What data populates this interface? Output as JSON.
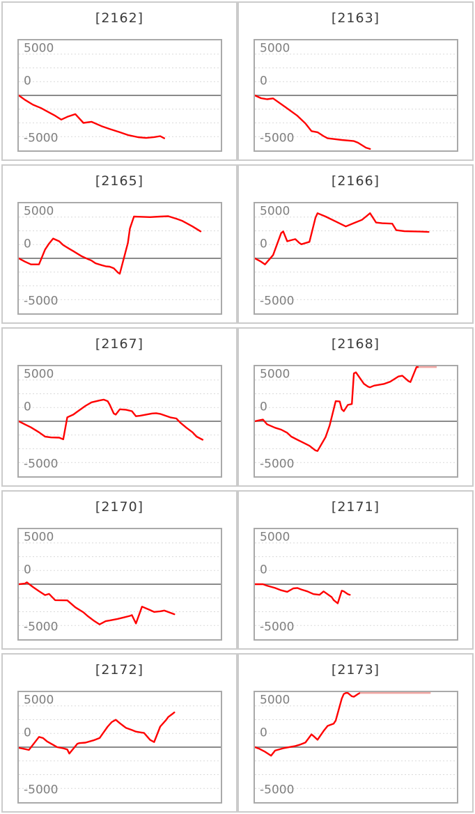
{
  "page": {
    "background": "#ffffff",
    "layout": "5 rows x 2 columns of machine net-win line charts"
  },
  "axis": {
    "labels": {
      "max": "5000",
      "zero": "0",
      "min": "-5000"
    },
    "ymax": 5000,
    "ymin": -5000,
    "grid_step": 1250,
    "grid": "dashed horizontal lines, solid line at 0"
  },
  "colors": {
    "line": "#ff0000",
    "clip_line": "#f2a6a3",
    "grid": "#d9d9d9",
    "zero_line": "#8a8a8a",
    "plot_border": "#a9a9a9",
    "cell_border": "#cbcbcb",
    "title": "#3a3a3a",
    "axis_label": "#7f7f7f"
  },
  "chart_data": [
    {
      "type": "line",
      "title": "[2162]",
      "ylim": [
        -5000,
        5000
      ],
      "x_unit": "fraction of plot width",
      "points": [
        [
          0,
          0
        ],
        [
          0.03,
          -400
        ],
        [
          0.07,
          -850
        ],
        [
          0.11,
          -1150
        ],
        [
          0.14,
          -1450
        ],
        [
          0.18,
          -1850
        ],
        [
          0.21,
          -2200
        ],
        [
          0.24,
          -1950
        ],
        [
          0.28,
          -1700
        ],
        [
          0.32,
          -2500
        ],
        [
          0.36,
          -2400
        ],
        [
          0.41,
          -2800
        ],
        [
          0.45,
          -3050
        ],
        [
          0.5,
          -3350
        ],
        [
          0.54,
          -3600
        ],
        [
          0.59,
          -3800
        ],
        [
          0.63,
          -3870
        ],
        [
          0.67,
          -3790
        ],
        [
          0.7,
          -3700
        ],
        [
          0.72,
          -3900
        ]
      ],
      "clip_segment": null
    },
    {
      "type": "line",
      "title": "[2163]",
      "ylim": [
        -5000,
        5000
      ],
      "x_unit": "fraction of plot width",
      "points": [
        [
          0,
          0
        ],
        [
          0.03,
          -250
        ],
        [
          0.06,
          -350
        ],
        [
          0.09,
          -270
        ],
        [
          0.15,
          -1050
        ],
        [
          0.21,
          -1850
        ],
        [
          0.25,
          -2550
        ],
        [
          0.28,
          -3250
        ],
        [
          0.31,
          -3350
        ],
        [
          0.34,
          -3700
        ],
        [
          0.36,
          -3900
        ],
        [
          0.43,
          -4050
        ],
        [
          0.49,
          -4150
        ],
        [
          0.51,
          -4300
        ],
        [
          0.55,
          -4750
        ],
        [
          0.57,
          -4870
        ]
      ],
      "clip_segment": null
    },
    {
      "type": "line",
      "title": "[2165]",
      "ylim": [
        -5000,
        5000
      ],
      "x_unit": "fraction of plot width",
      "points": [
        [
          0,
          0
        ],
        [
          0.03,
          -300
        ],
        [
          0.06,
          -550
        ],
        [
          0.1,
          -550
        ],
        [
          0.13,
          800
        ],
        [
          0.15,
          1350
        ],
        [
          0.17,
          1800
        ],
        [
          0.2,
          1550
        ],
        [
          0.22,
          1200
        ],
        [
          0.25,
          870
        ],
        [
          0.27,
          650
        ],
        [
          0.31,
          200
        ],
        [
          0.34,
          -50
        ],
        [
          0.36,
          -200
        ],
        [
          0.38,
          -450
        ],
        [
          0.41,
          -620
        ],
        [
          0.43,
          -720
        ],
        [
          0.45,
          -760
        ],
        [
          0.47,
          -900
        ],
        [
          0.49,
          -1280
        ],
        [
          0.5,
          -1400
        ],
        [
          0.54,
          1400
        ],
        [
          0.55,
          2700
        ],
        [
          0.57,
          3800
        ],
        [
          0.6,
          3780
        ],
        [
          0.65,
          3750
        ],
        [
          0.7,
          3800
        ],
        [
          0.74,
          3830
        ],
        [
          0.78,
          3600
        ],
        [
          0.81,
          3400
        ],
        [
          0.83,
          3200
        ],
        [
          0.86,
          2900
        ],
        [
          0.9,
          2450
        ]
      ],
      "clip_segment": null
    },
    {
      "type": "line",
      "title": "[2166]",
      "ylim": [
        -5000,
        5000
      ],
      "x_unit": "fraction of plot width",
      "points": [
        [
          0,
          0
        ],
        [
          0.03,
          -300
        ],
        [
          0.05,
          -550
        ],
        [
          0.09,
          300
        ],
        [
          0.13,
          2300
        ],
        [
          0.14,
          2450
        ],
        [
          0.16,
          1550
        ],
        [
          0.18,
          1650
        ],
        [
          0.2,
          1750
        ],
        [
          0.22,
          1400
        ],
        [
          0.23,
          1280
        ],
        [
          0.27,
          1500
        ],
        [
          0.3,
          3700
        ],
        [
          0.31,
          4100
        ],
        [
          0.35,
          3800
        ],
        [
          0.4,
          3350
        ],
        [
          0.45,
          2900
        ],
        [
          0.49,
          3200
        ],
        [
          0.53,
          3500
        ],
        [
          0.55,
          3800
        ],
        [
          0.57,
          4100
        ],
        [
          0.6,
          3250
        ],
        [
          0.63,
          3190
        ],
        [
          0.68,
          3150
        ],
        [
          0.7,
          2560
        ],
        [
          0.74,
          2470
        ],
        [
          0.82,
          2430
        ],
        [
          0.86,
          2400
        ]
      ],
      "clip_segment": null
    },
    {
      "type": "line",
      "title": "[2167]",
      "ylim": [
        -5000,
        5000
      ],
      "x_unit": "fraction of plot width",
      "points": [
        [
          0,
          0
        ],
        [
          0.03,
          -280
        ],
        [
          0.06,
          -550
        ],
        [
          0.1,
          -1000
        ],
        [
          0.13,
          -1390
        ],
        [
          0.16,
          -1470
        ],
        [
          0.2,
          -1490
        ],
        [
          0.22,
          -1640
        ],
        [
          0.24,
          360
        ],
        [
          0.27,
          610
        ],
        [
          0.29,
          880
        ],
        [
          0.33,
          1400
        ],
        [
          0.36,
          1720
        ],
        [
          0.4,
          1890
        ],
        [
          0.42,
          1970
        ],
        [
          0.44,
          1830
        ],
        [
          0.45,
          1510
        ],
        [
          0.47,
          710
        ],
        [
          0.48,
          610
        ],
        [
          0.5,
          1090
        ],
        [
          0.53,
          1050
        ],
        [
          0.56,
          920
        ],
        [
          0.58,
          460
        ],
        [
          0.6,
          500
        ],
        [
          0.63,
          610
        ],
        [
          0.66,
          710
        ],
        [
          0.68,
          735
        ],
        [
          0.7,
          670
        ],
        [
          0.75,
          355
        ],
        [
          0.78,
          250
        ],
        [
          0.8,
          -130
        ],
        [
          0.83,
          -590
        ],
        [
          0.86,
          -1000
        ],
        [
          0.88,
          -1390
        ],
        [
          0.91,
          -1680
        ]
      ],
      "clip_segment": null
    },
    {
      "type": "line",
      "title": "[2168]",
      "ylim": [
        -5000,
        5000
      ],
      "x_unit": "fraction of plot width",
      "points": [
        [
          0,
          0
        ],
        [
          0.02,
          80
        ],
        [
          0.04,
          150
        ],
        [
          0.06,
          -270
        ],
        [
          0.1,
          -590
        ],
        [
          0.13,
          -760
        ],
        [
          0.16,
          -1050
        ],
        [
          0.18,
          -1390
        ],
        [
          0.21,
          -1680
        ],
        [
          0.24,
          -1950
        ],
        [
          0.27,
          -2230
        ],
        [
          0.3,
          -2650
        ],
        [
          0.31,
          -2700
        ],
        [
          0.35,
          -1430
        ],
        [
          0.37,
          -380
        ],
        [
          0.4,
          1830
        ],
        [
          0.42,
          1800
        ],
        [
          0.43,
          1090
        ],
        [
          0.44,
          920
        ],
        [
          0.46,
          1490
        ],
        [
          0.48,
          1570
        ],
        [
          0.49,
          4350
        ],
        [
          0.5,
          4450
        ],
        [
          0.54,
          3400
        ],
        [
          0.56,
          3150
        ],
        [
          0.57,
          3090
        ],
        [
          0.59,
          3240
        ],
        [
          0.64,
          3400
        ],
        [
          0.67,
          3600
        ],
        [
          0.71,
          4070
        ],
        [
          0.73,
          4140
        ],
        [
          0.76,
          3650
        ],
        [
          0.77,
          3570
        ],
        [
          0.8,
          4980
        ],
        [
          0.81,
          5000
        ]
      ],
      "clip_segment": {
        "x1": 0.81,
        "x2": 0.9,
        "value": 5000
      }
    },
    {
      "type": "line",
      "title": "[2170]",
      "ylim": [
        -5000,
        5000
      ],
      "x_unit": "fraction of plot width",
      "points": [
        [
          0,
          0
        ],
        [
          0.03,
          60
        ],
        [
          0.04,
          170
        ],
        [
          0.07,
          -250
        ],
        [
          0.1,
          -630
        ],
        [
          0.13,
          -990
        ],
        [
          0.15,
          -880
        ],
        [
          0.18,
          -1450
        ],
        [
          0.24,
          -1470
        ],
        [
          0.28,
          -2100
        ],
        [
          0.32,
          -2560
        ],
        [
          0.34,
          -2880
        ],
        [
          0.37,
          -3300
        ],
        [
          0.4,
          -3650
        ],
        [
          0.43,
          -3360
        ],
        [
          0.45,
          -3300
        ],
        [
          0.49,
          -3150
        ],
        [
          0.52,
          -3020
        ],
        [
          0.55,
          -2880
        ],
        [
          0.56,
          -2810
        ],
        [
          0.58,
          -3570
        ],
        [
          0.61,
          -2040
        ],
        [
          0.65,
          -2350
        ],
        [
          0.67,
          -2520
        ],
        [
          0.7,
          -2460
        ],
        [
          0.72,
          -2390
        ],
        [
          0.77,
          -2730
        ]
      ],
      "clip_segment": null
    },
    {
      "type": "line",
      "title": "[2171]",
      "ylim": [
        -5000,
        5000
      ],
      "x_unit": "fraction of plot width",
      "points": [
        [
          0,
          0
        ],
        [
          0.04,
          0
        ],
        [
          0.06,
          -130
        ],
        [
          0.1,
          -340
        ],
        [
          0.13,
          -550
        ],
        [
          0.16,
          -690
        ],
        [
          0.19,
          -380
        ],
        [
          0.21,
          -340
        ],
        [
          0.23,
          -480
        ],
        [
          0.26,
          -650
        ],
        [
          0.29,
          -900
        ],
        [
          0.32,
          -960
        ],
        [
          0.34,
          -650
        ],
        [
          0.38,
          -1170
        ],
        [
          0.39,
          -1440
        ],
        [
          0.41,
          -1740
        ],
        [
          0.43,
          -590
        ],
        [
          0.44,
          -650
        ],
        [
          0.46,
          -900
        ],
        [
          0.47,
          -960
        ]
      ],
      "clip_segment": null
    },
    {
      "type": "line",
      "title": "[2172]",
      "ylim": [
        -5000,
        5000
      ],
      "x_unit": "fraction of plot width",
      "points": [
        [
          0,
          -60
        ],
        [
          0.03,
          -170
        ],
        [
          0.05,
          -250
        ],
        [
          0.1,
          930
        ],
        [
          0.12,
          830
        ],
        [
          0.14,
          520
        ],
        [
          0.17,
          210
        ],
        [
          0.19,
          0
        ],
        [
          0.22,
          -100
        ],
        [
          0.24,
          -210
        ],
        [
          0.25,
          -580
        ],
        [
          0.29,
          310
        ],
        [
          0.3,
          370
        ],
        [
          0.33,
          410
        ],
        [
          0.37,
          620
        ],
        [
          0.4,
          830
        ],
        [
          0.42,
          1350
        ],
        [
          0.44,
          1870
        ],
        [
          0.46,
          2280
        ],
        [
          0.48,
          2490
        ],
        [
          0.5,
          2180
        ],
        [
          0.52,
          1900
        ],
        [
          0.53,
          1760
        ],
        [
          0.56,
          1560
        ],
        [
          0.58,
          1410
        ],
        [
          0.6,
          1350
        ],
        [
          0.62,
          1290
        ],
        [
          0.65,
          660
        ],
        [
          0.67,
          460
        ],
        [
          0.7,
          1870
        ],
        [
          0.73,
          2490
        ],
        [
          0.74,
          2740
        ],
        [
          0.76,
          3010
        ],
        [
          0.77,
          3160
        ]
      ],
      "clip_segment": null
    },
    {
      "type": "line",
      "title": "[2173]",
      "ylim": [
        -5000,
        5000
      ],
      "x_unit": "fraction of plot width",
      "points": [
        [
          0,
          0
        ],
        [
          0.02,
          -130
        ],
        [
          0.05,
          -420
        ],
        [
          0.08,
          -780
        ],
        [
          0.1,
          -310
        ],
        [
          0.14,
          -100
        ],
        [
          0.18,
          40
        ],
        [
          0.2,
          100
        ],
        [
          0.22,
          210
        ],
        [
          0.25,
          420
        ],
        [
          0.28,
          1160
        ],
        [
          0.29,
          1010
        ],
        [
          0.31,
          670
        ],
        [
          0.34,
          1470
        ],
        [
          0.36,
          1930
        ],
        [
          0.37,
          2000
        ],
        [
          0.39,
          2140
        ],
        [
          0.4,
          2420
        ],
        [
          0.43,
          4410
        ],
        [
          0.44,
          4830
        ],
        [
          0.45,
          5000
        ],
        [
          0.46,
          4930
        ],
        [
          0.48,
          4620
        ],
        [
          0.49,
          4580
        ],
        [
          0.51,
          4830
        ],
        [
          0.52,
          5000
        ]
      ],
      "clip_segment": {
        "x1": 0.52,
        "x2": 0.87,
        "value": 5000
      }
    }
  ]
}
